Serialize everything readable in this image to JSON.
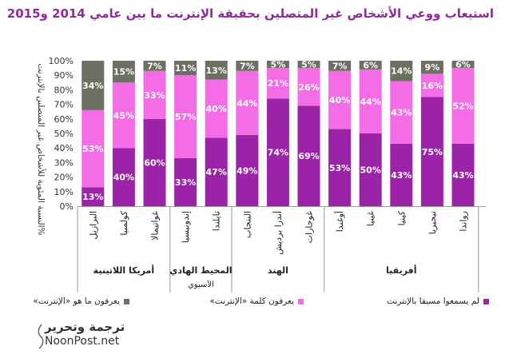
{
  "title": "استيعاب ووعي الأشخاص غير المتصلين بحقيقة الإنترنت ما بين عامي 2014 و2015",
  "chart_data": {
    "type": "bar",
    "stacked": true,
    "title": "استيعاب ووعي الأشخاص غير المتصلين بحقيقة الإنترنت ما بين عامي 2014 و2015",
    "ylabel": "%النسبة المئوية للأشخاص غير المتصلين بالإنترنت",
    "ylim": [
      0,
      100
    ],
    "yticks": [
      "0%",
      "10%",
      "20%",
      "30%",
      "40%",
      "50%",
      "60%",
      "70%",
      "80%",
      "90%",
      "100%"
    ],
    "categories": [
      "البرازيل",
      "كولمبيا",
      "غواتيمالا",
      "إندونيسيا",
      "تايلندا",
      "البنجاب",
      "أندرا برديش",
      "غوجارات",
      "أوغندا",
      "غينيا",
      "كينيا",
      "نيجيريا",
      "رواندا"
    ],
    "groups": [
      {
        "label": "أمريكا اللاتينية",
        "span": 3
      },
      {
        "label": "المحيط الهادي",
        "sublabel": "الآسيوي",
        "span": 2
      },
      {
        "label": "الهند",
        "span": 3
      },
      {
        "label": "أفريقيا",
        "span": 5
      }
    ],
    "series": [
      {
        "name": "لم يسمعوا مسبقا بالإنترنت",
        "color": "#9b23a8",
        "values": [
          13,
          40,
          60,
          33,
          47,
          49,
          74,
          69,
          53,
          50,
          43,
          75,
          43
        ],
        "labels": [
          "13%",
          "40%",
          "60%",
          "33%",
          "47%",
          "49%",
          "74%",
          "69%",
          "53%",
          "50%",
          "43%",
          "75%",
          "43%"
        ]
      },
      {
        "name": "يعرفون كلمة «الإنترنت»",
        "color": "#f46ce6",
        "values": [
          53,
          45,
          33,
          57,
          40,
          44,
          21,
          26,
          40,
          44,
          43,
          16,
          52
        ],
        "labels": [
          "53%",
          "45%",
          "33%",
          "57%",
          "40%",
          "44%",
          "21%",
          "26%",
          "40%",
          "44%",
          "43%",
          "16%",
          "52%"
        ]
      },
      {
        "name": "يعرفون ما هو «الإنترنت»",
        "color": "#6d6f62",
        "values": [
          34,
          15,
          7,
          11,
          13,
          7,
          5,
          5,
          7,
          6,
          14,
          9,
          6
        ],
        "labels": [
          "34%",
          "15%",
          "7%",
          "11%",
          "13%",
          "7%",
          "5%",
          "5%",
          "7%",
          "6%",
          "14%",
          "9%",
          "6%"
        ]
      }
    ]
  },
  "brand": {
    "arabic": "ترجمة وتحرير",
    "site": "NoonPost.net"
  }
}
